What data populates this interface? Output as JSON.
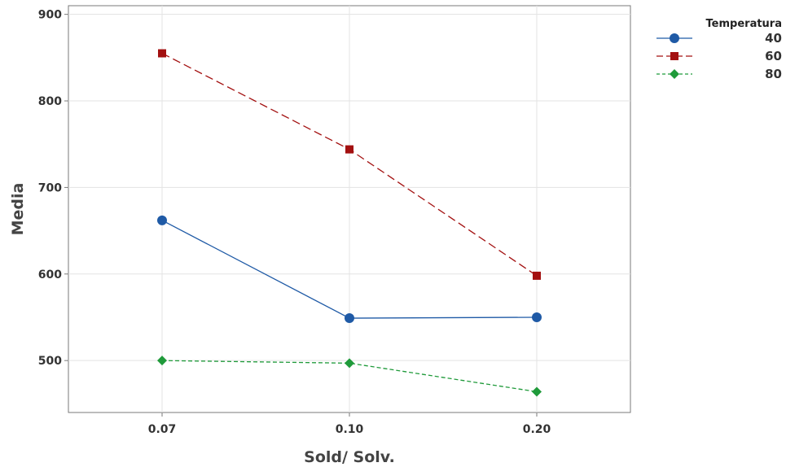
{
  "chart_data": {
    "type": "line",
    "x_categories": [
      "0.07",
      "0.10",
      "0.20"
    ],
    "xlabel": "Sold/ Solv.",
    "ylabel": "Media",
    "ylim": [
      440,
      910
    ],
    "yticks": [
      500,
      600,
      700,
      800,
      900
    ],
    "grid": true,
    "legend": {
      "title": "Temperatura",
      "placement": "top-right-outside"
    },
    "series": [
      {
        "name": "40",
        "values": [
          662,
          549,
          550
        ],
        "color": "#1f5aa6",
        "marker": "circle",
        "line_style": "solid"
      },
      {
        "name": "60",
        "values": [
          855,
          744,
          598
        ],
        "color": "#a31010",
        "marker": "square",
        "line_style": "long-dash"
      },
      {
        "name": "80",
        "values": [
          500,
          497,
          464
        ],
        "color": "#1f9a3a",
        "marker": "diamond",
        "line_style": "short-dash"
      }
    ]
  }
}
